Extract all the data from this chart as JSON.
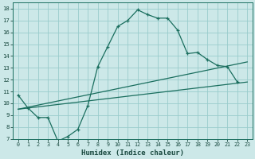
{
  "xlabel": "Humidex (Indice chaleur)",
  "background_color": "#cce8e8",
  "line_color": "#1a6e5e",
  "grid_color": "#99cccc",
  "xlim": [
    -0.5,
    23.5
  ],
  "ylim": [
    7,
    18.5
  ],
  "yticks": [
    7,
    8,
    9,
    10,
    11,
    12,
    13,
    14,
    15,
    16,
    17,
    18
  ],
  "xticks": [
    0,
    1,
    2,
    3,
    4,
    5,
    6,
    7,
    8,
    9,
    10,
    11,
    12,
    13,
    14,
    15,
    16,
    17,
    18,
    19,
    20,
    21,
    22,
    23
  ],
  "series_main": {
    "x": [
      0,
      1,
      2,
      3,
      4,
      5,
      6,
      7,
      8,
      9,
      10,
      11,
      12,
      13,
      14,
      15,
      16,
      17,
      18,
      19,
      20,
      21,
      22
    ],
    "y": [
      10.7,
      9.6,
      8.8,
      8.8,
      6.8,
      7.2,
      7.8,
      9.8,
      13.1,
      14.8,
      16.5,
      17.0,
      17.9,
      17.5,
      17.2,
      17.2,
      16.2,
      14.2,
      14.3,
      13.7,
      13.2,
      13.1,
      11.8
    ]
  },
  "series_line1": {
    "x": [
      0,
      23
    ],
    "y": [
      9.5,
      11.8
    ]
  },
  "series_line2": {
    "x": [
      0,
      23
    ],
    "y": [
      9.5,
      13.5
    ]
  }
}
